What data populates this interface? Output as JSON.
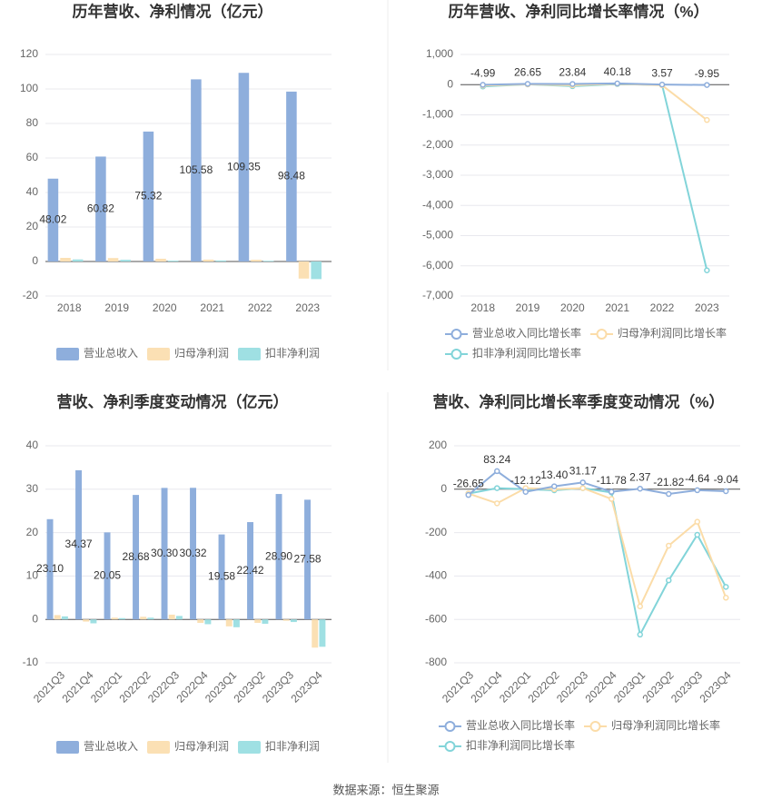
{
  "chart_data": [
    {
      "type": "bar",
      "title": "历年营收、净利情况（亿元）",
      "categories": [
        "2018",
        "2019",
        "2020",
        "2021",
        "2022",
        "2023"
      ],
      "ylim": [
        -20,
        120
      ],
      "yticks": [
        -20,
        0,
        20,
        40,
        60,
        80,
        100,
        120
      ],
      "grid": true,
      "series": [
        {
          "name": "营业总收入",
          "color": "#8eaedc",
          "values": [
            48.02,
            60.82,
            75.32,
            105.58,
            109.35,
            98.48
          ],
          "data_labels": true
        },
        {
          "name": "归母净利润",
          "color": "#fbe0b4",
          "values": [
            2.1,
            2.0,
            1.6,
            1.1,
            1.0,
            -9.9
          ]
        },
        {
          "name": "扣非净利润",
          "color": "#9fe0e3",
          "values": [
            1.2,
            1.0,
            0.5,
            0.6,
            0.4,
            -10.2
          ]
        }
      ]
    },
    {
      "type": "line",
      "title": "历年营收、净利同比增长率情况（%）",
      "categories": [
        "2018",
        "2019",
        "2020",
        "2021",
        "2022",
        "2023"
      ],
      "ylim": [
        -7000,
        1000
      ],
      "yticks": [
        {
          "value": -7000,
          "label": "-7,000"
        },
        {
          "value": -6000,
          "label": "-6,000"
        },
        {
          "value": -5000,
          "label": "-5,000"
        },
        {
          "value": -4000,
          "label": "-4,000"
        },
        {
          "value": -3000,
          "label": "-3,000"
        },
        {
          "value": -2000,
          "label": "-2,000"
        },
        {
          "value": -1000,
          "label": "-1,000"
        },
        0,
        {
          "value": 1000,
          "label": "1,000"
        }
      ],
      "grid": true,
      "series": [
        {
          "name": "营业总收入同比增长率",
          "color": "#8eaedc",
          "values": [
            -4.99,
            26.65,
            23.84,
            40.18,
            3.57,
            -9.95
          ],
          "data_labels": true
        },
        {
          "name": "归母净利润同比增长率",
          "color": "#fbdca8",
          "values": [
            -30,
            10,
            -20,
            30,
            -20,
            -1170
          ]
        },
        {
          "name": "扣非净利润同比增长率",
          "color": "#82d4d9",
          "values": [
            -60,
            10,
            -50,
            20,
            -10,
            -6150
          ]
        }
      ]
    },
    {
      "type": "bar",
      "title": "营收、净利季度变动情况（亿元）",
      "categories": [
        "2021Q3",
        "2021Q4",
        "2022Q1",
        "2022Q2",
        "2022Q3",
        "2022Q4",
        "2023Q1",
        "2023Q2",
        "2023Q3",
        "2023Q4"
      ],
      "ylim": [
        -10,
        40
      ],
      "yticks": [
        -10,
        0,
        10,
        20,
        30,
        40
      ],
      "grid": true,
      "series": [
        {
          "name": "营业总收入",
          "color": "#8eaedc",
          "values": [
            23.1,
            34.37,
            20.05,
            28.68,
            30.3,
            30.32,
            19.58,
            22.42,
            28.9,
            27.58
          ],
          "value_labels": [
            "23.10",
            "34.37",
            "20.05",
            "28.68",
            "30.30",
            "30.32",
            "19.58",
            "22.42",
            "28.90",
            "27.58"
          ],
          "data_labels": true
        },
        {
          "name": "归母净利润",
          "color": "#fbe0b4",
          "values": [
            1.0,
            -0.5,
            0.4,
            0.6,
            1.1,
            -0.8,
            -1.6,
            -0.8,
            -0.3,
            -6.5
          ]
        },
        {
          "name": "扣非净利润",
          "color": "#9fe0e3",
          "values": [
            0.7,
            -0.9,
            0.3,
            0.4,
            0.8,
            -1.1,
            -1.8,
            -1.0,
            -0.6,
            -6.3
          ]
        }
      ]
    },
    {
      "type": "line",
      "title": "营收、净利同比增长率季度变动情况（%）",
      "categories": [
        "2021Q3",
        "2021Q4",
        "2022Q1",
        "2022Q2",
        "2022Q3",
        "2022Q4",
        "2023Q1",
        "2023Q2",
        "2023Q3",
        "2023Q4"
      ],
      "ylim": [
        -800,
        200
      ],
      "yticks": [
        -800,
        -600,
        -400,
        -200,
        0,
        200
      ],
      "grid": true,
      "series": [
        {
          "name": "营业总收入同比增长率",
          "color": "#8eaedc",
          "values": [
            -26.65,
            83.24,
            -12.12,
            13.4,
            31.17,
            -11.78,
            2.37,
            -21.82,
            -4.64,
            -9.04
          ],
          "value_labels": [
            "-26.65",
            "83.24",
            "-12.12",
            "13.40",
            "31.17",
            "-11.78",
            "2.37",
            "-21.82",
            "-4.64",
            "-9.04"
          ],
          "data_labels": true
        },
        {
          "name": "归母净利润同比增长率",
          "color": "#fbdca8",
          "values": [
            -20,
            -65,
            5,
            0,
            5,
            -45,
            -540,
            -260,
            -150,
            -500
          ]
        },
        {
          "name": "扣非净利润同比增长率",
          "color": "#82d4d9",
          "values": [
            -20,
            5,
            0,
            -5,
            5,
            -15,
            -670,
            -420,
            -210,
            -450
          ]
        }
      ]
    }
  ],
  "source": "数据来源：恒生聚源"
}
